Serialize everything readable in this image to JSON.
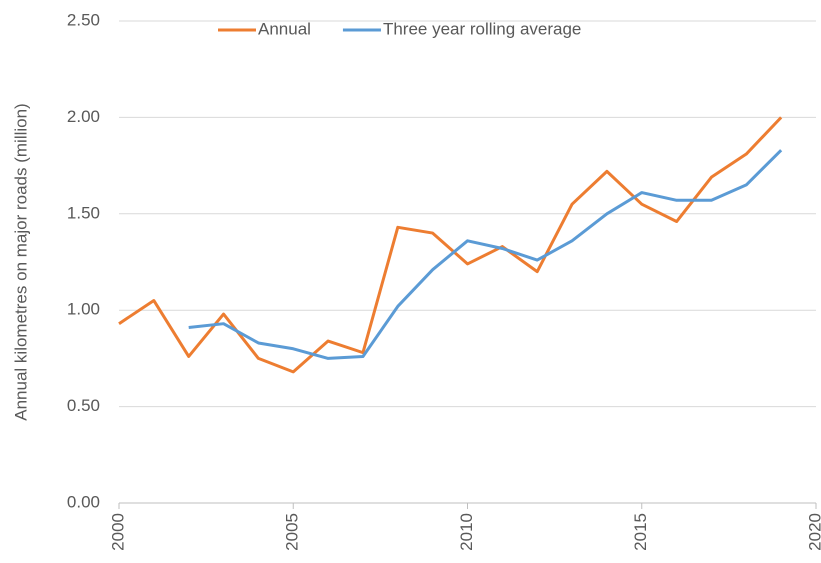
{
  "chart_data": {
    "type": "line",
    "y_label": "Annual kilometres on major roads (million)",
    "x": [
      2000,
      2001,
      2002,
      2003,
      2004,
      2005,
      2006,
      2007,
      2008,
      2009,
      2010,
      2011,
      2012,
      2013,
      2014,
      2015,
      2016,
      2017,
      2018,
      2019
    ],
    "series": [
      {
        "name": "Annual",
        "color": "#ed7d31",
        "values": [
          0.93,
          1.05,
          0.76,
          0.98,
          0.75,
          0.68,
          0.84,
          0.78,
          1.43,
          1.4,
          1.24,
          1.33,
          1.2,
          1.55,
          1.72,
          1.55,
          1.46,
          1.69,
          1.81,
          2.0
        ]
      },
      {
        "name": "Three year rolling average",
        "color": "#5b9bd5",
        "values": [
          null,
          null,
          0.91,
          0.93,
          0.83,
          0.8,
          0.75,
          0.76,
          1.02,
          1.21,
          1.36,
          1.32,
          1.26,
          1.36,
          1.5,
          1.61,
          1.57,
          1.57,
          1.65,
          1.83
        ]
      }
    ],
    "xlim": [
      2000,
      2020
    ],
    "xticks": [
      2000,
      2005,
      2010,
      2015,
      2020
    ],
    "ylim": [
      0,
      2.5
    ],
    "yticks": [
      {
        "value": 0,
        "label": "0.00"
      },
      {
        "value": 0.5,
        "label": "0.50"
      },
      {
        "value": 1,
        "label": "1.00"
      },
      {
        "value": 1.5,
        "label": "1.50"
      },
      {
        "value": 2,
        "label": "2.00"
      },
      {
        "value": 2.5,
        "label": "2.50"
      }
    ],
    "grid": true,
    "legend": "top"
  }
}
